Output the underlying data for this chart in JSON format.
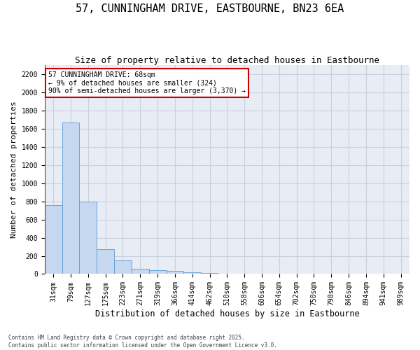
{
  "title": "57, CUNNINGHAM DRIVE, EASTBOURNE, BN23 6EA",
  "subtitle": "Size of property relative to detached houses in Eastbourne",
  "xlabel": "Distribution of detached houses by size in Eastbourne",
  "ylabel": "Number of detached properties",
  "categories": [
    "31sqm",
    "79sqm",
    "127sqm",
    "175sqm",
    "223sqm",
    "271sqm",
    "319sqm",
    "366sqm",
    "414sqm",
    "462sqm",
    "510sqm",
    "558sqm",
    "606sqm",
    "654sqm",
    "702sqm",
    "750sqm",
    "798sqm",
    "846sqm",
    "894sqm",
    "941sqm",
    "989sqm"
  ],
  "values": [
    760,
    1670,
    800,
    270,
    150,
    55,
    45,
    35,
    20,
    10,
    0,
    0,
    5,
    0,
    0,
    0,
    0,
    0,
    0,
    0,
    0
  ],
  "bar_color": "#c5d8f0",
  "bar_edge_color": "#5b9bd5",
  "vline_color": "#cc0000",
  "annotation_text": "57 CUNNINGHAM DRIVE: 68sqm\n← 9% of detached houses are smaller (324)\n90% of semi-detached houses are larger (3,370) →",
  "annotation_box_color": "#cc0000",
  "ylim": [
    0,
    2300
  ],
  "yticks": [
    0,
    200,
    400,
    600,
    800,
    1000,
    1200,
    1400,
    1600,
    1800,
    2000,
    2200
  ],
  "grid_color": "#c8d0dc",
  "bg_color": "#e8edf5",
  "footer": "Contains HM Land Registry data © Crown copyright and database right 2025.\nContains public sector information licensed under the Open Government Licence v3.0.",
  "title_fontsize": 11,
  "subtitle_fontsize": 9,
  "xlabel_fontsize": 8.5,
  "ylabel_fontsize": 8,
  "tick_fontsize": 7,
  "annot_fontsize": 7,
  "footer_fontsize": 5.5
}
